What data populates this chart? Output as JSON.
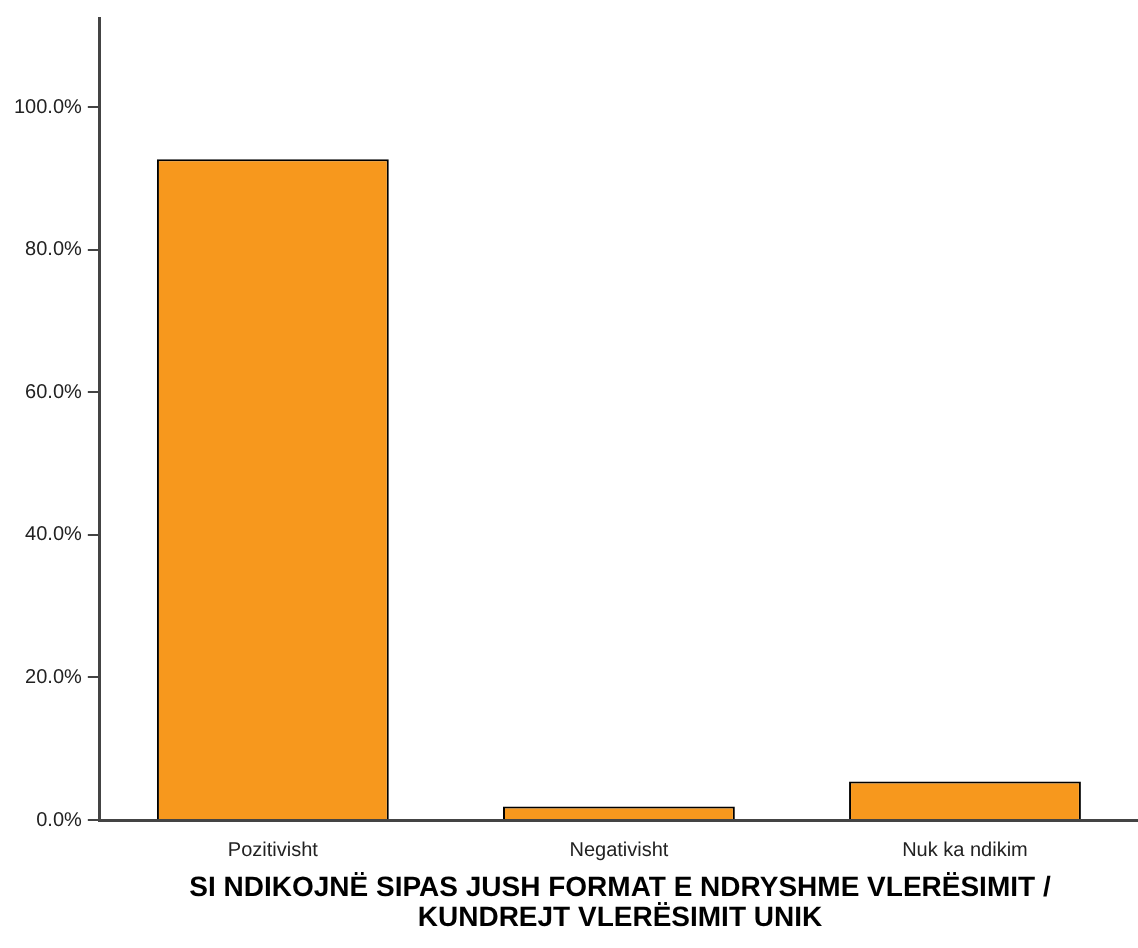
{
  "chart_data": {
    "type": "bar",
    "xlabel": "SI NDIKOJNË  SIPAS JUSH FORMAT E NDRYSHME VLERËSIMIT / KUNDREJT VLERËSIMIT UNIK",
    "categories": [
      "Pozitivisht",
      "Negativisht",
      "Nuk ka ndikim"
    ],
    "values": [
      92.7,
      1.9,
      5.4
    ],
    "color": "#f7981d",
    "ylim": [
      0,
      112.5
    ],
    "yticks": [
      {
        "value": 0,
        "label": "0.0%"
      },
      {
        "value": 20,
        "label": "20.0%"
      },
      {
        "value": 40,
        "label": "40.0%"
      },
      {
        "value": 60,
        "label": "60.0%"
      },
      {
        "value": 80,
        "label": "80.0%"
      },
      {
        "value": 100,
        "label": "100.0%"
      }
    ],
    "grid": false,
    "legend": false
  }
}
